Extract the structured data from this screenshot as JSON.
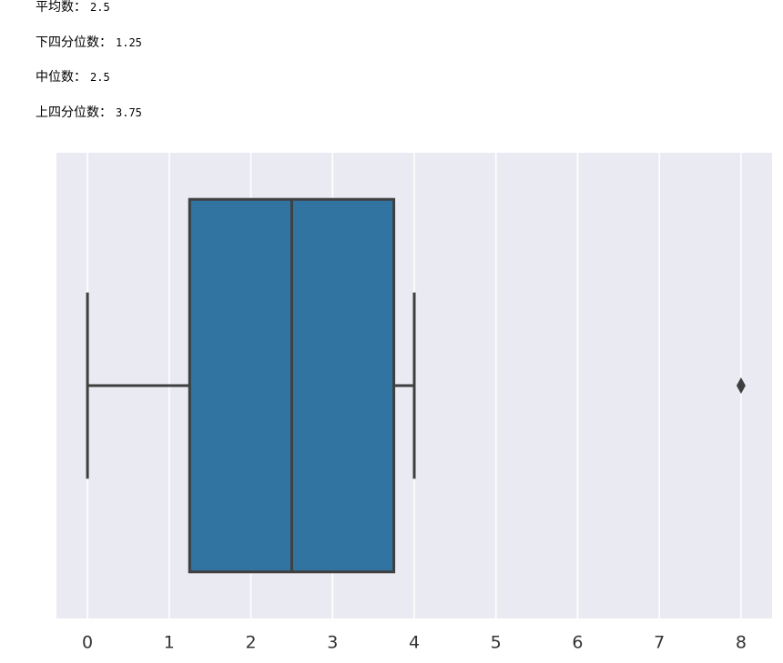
{
  "stats": [
    {
      "label": "平均数：",
      "value": 2.5
    },
    {
      "label": "下四分位数：",
      "value": 1.25
    },
    {
      "label": "中位数：",
      "value": 2.5
    },
    {
      "label": "上四分位数：",
      "value": 3.75
    }
  ],
  "chart_data": {
    "type": "box",
    "boxes": [
      {
        "whislo": 0,
        "q1": 1.25,
        "med": 2.5,
        "q3": 3.75,
        "whishi": 4,
        "fliers": [
          8
        ]
      }
    ],
    "color": "#3274a1",
    "line_color": "#3f3f3f",
    "background": "#eaeaf2",
    "xlim": [
      -0.38,
      8.38
    ],
    "xticks": [
      0,
      1,
      2,
      3,
      4,
      5,
      6,
      7,
      8
    ],
    "grid": true
  }
}
